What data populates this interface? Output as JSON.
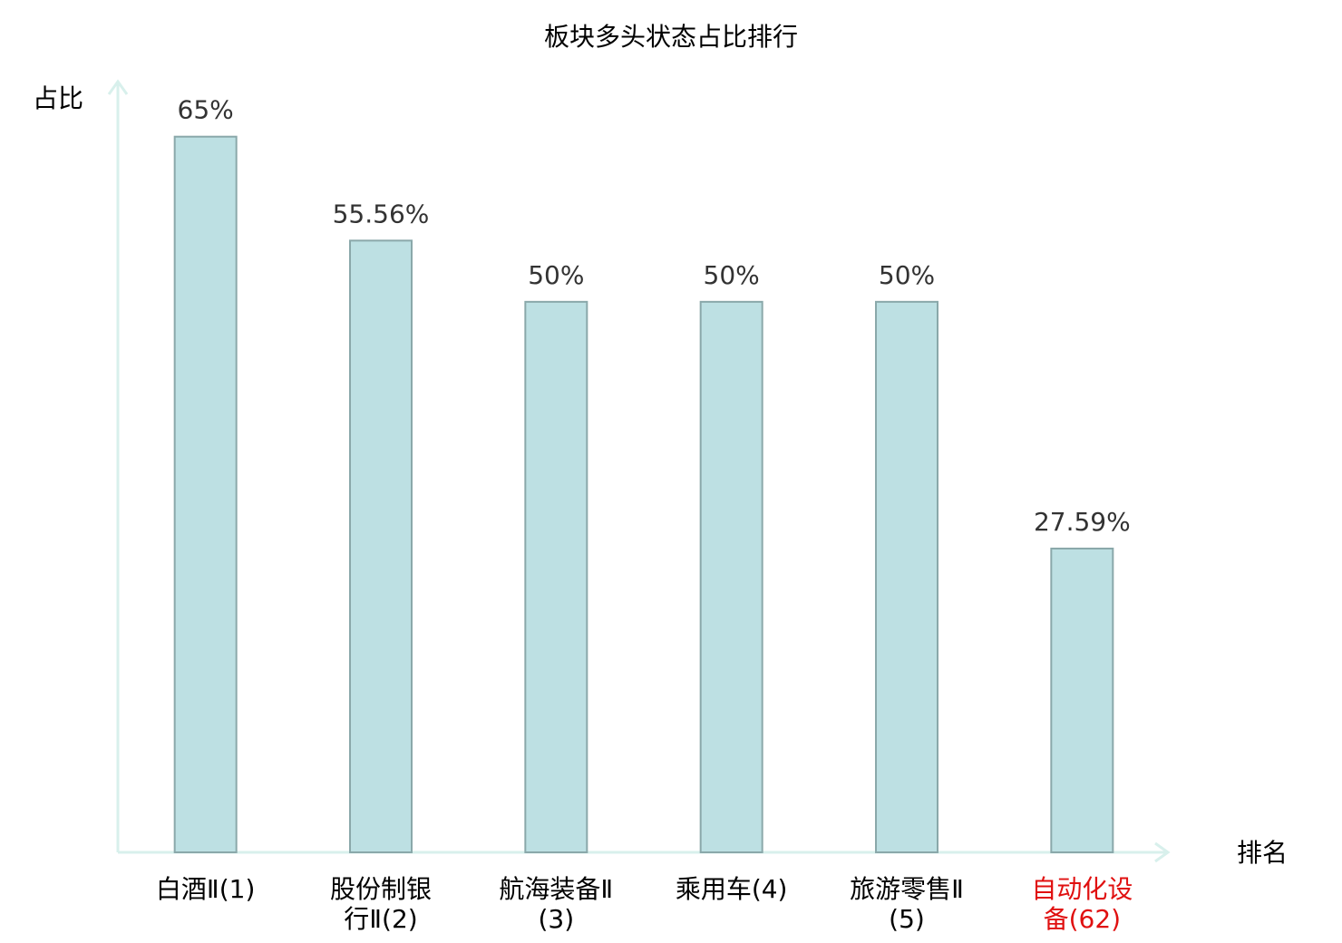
{
  "chart_data": {
    "type": "bar",
    "title": "板块多头状态占比排行",
    "y_label": "占比",
    "x_label": "排名",
    "categories": [
      "白酒Ⅱ(1)",
      "股份制银行Ⅱ(2)",
      "航海装备Ⅱ(3)",
      "乘用车(4)",
      "旅游零售Ⅱ(5)",
      "自动化设备(62)"
    ],
    "category_colors": [
      "#000000",
      "#000000",
      "#000000",
      "#000000",
      "#000000",
      "#e01010"
    ],
    "values": [
      65,
      55.56,
      50,
      50,
      50,
      27.59
    ],
    "value_labels": [
      "65%",
      "55.56%",
      "50%",
      "50%",
      "50%",
      "27.59%"
    ],
    "color": "#bde0e3",
    "edge_color": "#8aa8aa",
    "ylim": [
      0,
      70
    ]
  }
}
